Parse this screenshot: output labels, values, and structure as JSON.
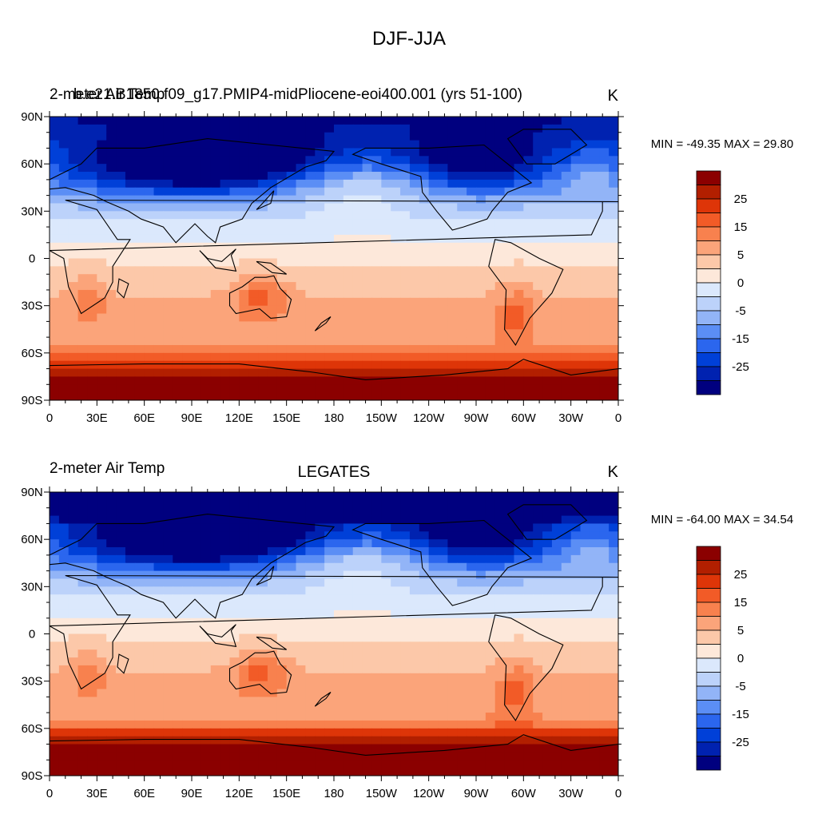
{
  "page_title": "DJF-JJA",
  "colors": {
    "levels": [
      "#00007f",
      "#0022b0",
      "#0040d8",
      "#2b66ee",
      "#5b8ef5",
      "#92b4f7",
      "#bcd2fa",
      "#dbe8fc",
      "#fde8da",
      "#fcc8a9",
      "#fba47a",
      "#f8814e",
      "#f25b27",
      "#de3508",
      "#b21f00",
      "#8b0000"
    ],
    "land_outline": "#000000"
  },
  "chart_data": [
    {
      "type": "heatmap",
      "id": "model",
      "title_left_1": "2-meter Air Temp",
      "title_left_2": "b.e21.B1850.f09_g17.PMIP4-midPliocene-eoi400.001 (yrs 51-100)",
      "title_center": "",
      "units": "K",
      "stats": "MIN = -49.35 MAX =  29.80",
      "min": -49.35,
      "max": 29.8,
      "xlim": [
        0,
        360
      ],
      "ylim": [
        -90,
        90
      ],
      "xticks": [
        "0",
        "30E",
        "60E",
        "90E",
        "120E",
        "150E",
        "180",
        "150W",
        "120W",
        "90W",
        "60W",
        "30W",
        "0"
      ],
      "yticks": [
        "90N",
        "60N",
        "30N",
        "0",
        "30S",
        "60S",
        "90S"
      ],
      "contour_levels": [
        -35,
        -30,
        -25,
        -20,
        -15,
        -10,
        -5,
        0,
        5,
        10,
        15,
        20,
        25,
        30,
        35
      ],
      "colorbar_labels": [
        "25",
        "15",
        "5",
        "0",
        "-5",
        "-15",
        "-25"
      ]
    },
    {
      "type": "heatmap",
      "id": "obs",
      "title_left_1": "2-meter Air Temp",
      "title_left_2": "",
      "title_center": "LEGATES",
      "units": "K",
      "stats": "MIN = -64.00 MAX =  34.54",
      "min": -64.0,
      "max": 34.54,
      "xlim": [
        0,
        360
      ],
      "ylim": [
        -90,
        90
      ],
      "xticks": [
        "0",
        "30E",
        "60E",
        "90E",
        "120E",
        "150E",
        "180",
        "150W",
        "120W",
        "90W",
        "60W",
        "30W",
        "0"
      ],
      "yticks": [
        "90N",
        "60N",
        "30N",
        "0",
        "30S",
        "60S",
        "90S"
      ],
      "contour_levels": [
        -35,
        -30,
        -25,
        -20,
        -15,
        -10,
        -5,
        0,
        5,
        10,
        15,
        20,
        25,
        30,
        35
      ],
      "colorbar_labels": [
        "25",
        "15",
        "5",
        "0",
        "-5",
        "-15",
        "-25"
      ]
    }
  ]
}
